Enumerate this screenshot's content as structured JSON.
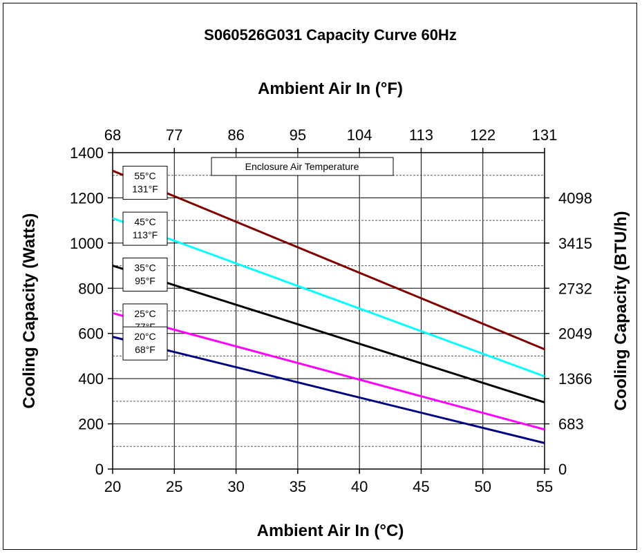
{
  "chart_data": {
    "type": "line",
    "title": "S060526G031 Capacity Curve 60Hz",
    "xlabel": "Ambient Air In (°C)",
    "x2label": "Ambient Air In (°F)",
    "ylabel": "Cooling Capacity (Watts)",
    "y2label": "Cooling Capacity (BTU/h)",
    "xlim": [
      20,
      55
    ],
    "ylim": [
      0,
      1400
    ],
    "x_ticks": [
      "20",
      "25",
      "30",
      "35",
      "40",
      "45",
      "50",
      "55"
    ],
    "x2_ticks": [
      "68",
      "77",
      "86",
      "95",
      "104",
      "113",
      "122",
      "131"
    ],
    "y_ticks": [
      "0",
      "200",
      "400",
      "600",
      "800",
      "1000",
      "1200",
      "1400"
    ],
    "y2_ticks": [
      {
        "w": 0,
        "label": "0"
      },
      {
        "w": 200,
        "label": "683"
      },
      {
        "w": 400,
        "label": "1366"
      },
      {
        "w": 600,
        "label": "2049"
      },
      {
        "w": 800,
        "label": "2732"
      },
      {
        "w": 1000,
        "label": "3415"
      },
      {
        "w": 1200,
        "label": "4098"
      }
    ],
    "grid": true,
    "legend_title": "Enclosure Air Temperature",
    "series": [
      {
        "name": "55°C 131°F",
        "label_c": "55°C",
        "label_f": "131°F",
        "color": "#800000",
        "x": [
          20,
          55
        ],
        "y": [
          1320,
          530
        ]
      },
      {
        "name": "45°C 113°F",
        "label_c": "45°C",
        "label_f": "113°F",
        "color": "#00ffff",
        "x": [
          20,
          55
        ],
        "y": [
          1110,
          410
        ]
      },
      {
        "name": "35°C 95°F",
        "label_c": "35°C",
        "label_f": "95°F",
        "color": "#000000",
        "x": [
          20,
          55
        ],
        "y": [
          900,
          295
        ]
      },
      {
        "name": "25°C 77°F",
        "label_c": "25°C",
        "label_f": "77°F",
        "color": "#ff00ff",
        "x": [
          20,
          55
        ],
        "y": [
          690,
          175
        ]
      },
      {
        "name": "20°C 68°F",
        "label_c": "20°C",
        "label_f": "68°F",
        "color": "#000080",
        "x": [
          20,
          55
        ],
        "y": [
          585,
          115
        ]
      }
    ]
  }
}
